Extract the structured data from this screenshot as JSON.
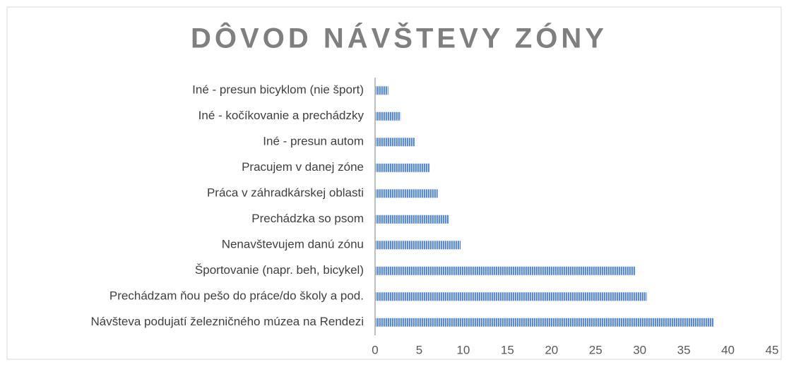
{
  "chart_data": {
    "type": "bar",
    "orientation": "horizontal",
    "title": "DÔVOD NÁVŠTEVY ZÓNY",
    "categories": [
      "Iné - presun bicyklom (nie šport)",
      "Iné - kočíkovanie a prechádzky",
      "Iné - presun autom",
      "Pracujem v danej zóne",
      "Práca v záhradkárskej oblasti",
      "Prechádzka so psom",
      "Nenavštevujem danú zónu",
      "Športovanie (napr. beh, bicykel)",
      "Prechádzam ňou pešo do práce/do školy a pod.",
      "Návšteva podujatí železničného múzea na Rendezi"
    ],
    "values": [
      1.5,
      2.9,
      4.5,
      6.2,
      7.1,
      8.4,
      9.7,
      29.5,
      30.8,
      38.4
    ],
    "color": "#4a7fe0",
    "xlim": [
      0,
      45
    ],
    "xticks": [
      0,
      5,
      10,
      15,
      20,
      25,
      30,
      35,
      40,
      45
    ],
    "grid": false
  }
}
